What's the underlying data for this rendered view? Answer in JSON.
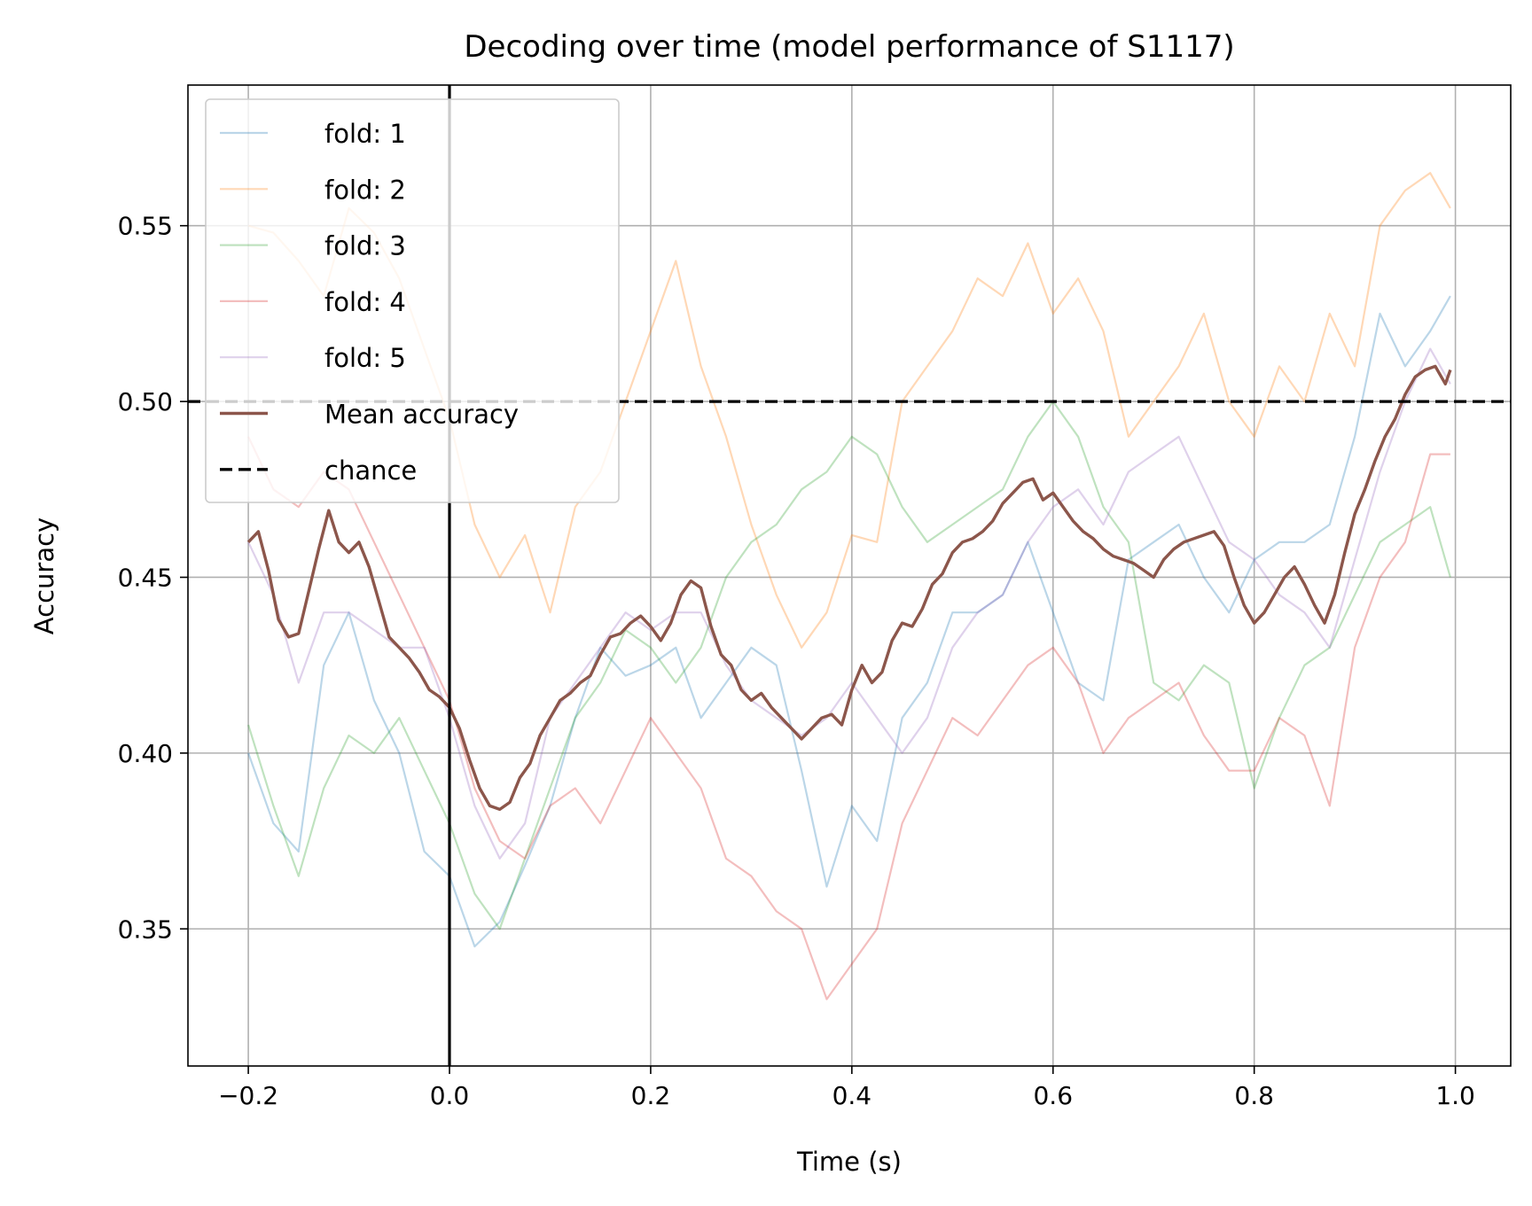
{
  "chart_data": {
    "type": "line",
    "title": "Decoding over time (model performance of S1117)",
    "xlabel": "Time (s)",
    "ylabel": "Accuracy",
    "xlim": [
      -0.26,
      1.055
    ],
    "ylim": [
      0.311,
      0.59
    ],
    "xticks": [
      -0.2,
      0.0,
      0.2,
      0.4,
      0.6,
      0.8,
      1.0
    ],
    "xtick_labels": [
      "−0.2",
      "0.0",
      "0.2",
      "0.4",
      "0.6",
      "0.8",
      "1.0"
    ],
    "yticks": [
      0.35,
      0.4,
      0.45,
      0.5,
      0.55
    ],
    "ytick_labels": [
      "0.35",
      "0.40",
      "0.45",
      "0.50",
      "0.55"
    ],
    "grid": true,
    "legend_position": "upper-left",
    "stimulus_onset_x": 0.0,
    "chance_level": 0.5,
    "series": [
      {
        "name": "fold: 1",
        "color": "#1f77b4",
        "opacity": 0.3,
        "x": [
          -0.2,
          -0.175,
          -0.15,
          -0.125,
          -0.1,
          -0.075,
          -0.05,
          -0.025,
          0.0,
          0.025,
          0.05,
          0.075,
          0.1,
          0.125,
          0.15,
          0.175,
          0.2,
          0.225,
          0.25,
          0.275,
          0.3,
          0.325,
          0.35,
          0.375,
          0.4,
          0.425,
          0.45,
          0.475,
          0.5,
          0.525,
          0.55,
          0.575,
          0.6,
          0.625,
          0.65,
          0.675,
          0.7,
          0.725,
          0.75,
          0.775,
          0.8,
          0.825,
          0.85,
          0.875,
          0.9,
          0.925,
          0.95,
          0.975,
          0.995
        ],
        "y": [
          0.4,
          0.38,
          0.372,
          0.425,
          0.44,
          0.415,
          0.4,
          0.372,
          0.365,
          0.345,
          0.352,
          0.368,
          0.385,
          0.41,
          0.43,
          0.422,
          0.425,
          0.43,
          0.41,
          0.42,
          0.43,
          0.425,
          0.395,
          0.362,
          0.385,
          0.375,
          0.41,
          0.42,
          0.44,
          0.44,
          0.445,
          0.46,
          0.44,
          0.42,
          0.415,
          0.455,
          0.46,
          0.465,
          0.45,
          0.44,
          0.455,
          0.46,
          0.46,
          0.465,
          0.49,
          0.525,
          0.51,
          0.52,
          0.53
        ]
      },
      {
        "name": "fold: 2",
        "color": "#ff7f0e",
        "opacity": 0.3,
        "x": [
          -0.2,
          -0.175,
          -0.15,
          -0.125,
          -0.1,
          -0.075,
          -0.05,
          -0.025,
          0.0,
          0.025,
          0.05,
          0.075,
          0.1,
          0.125,
          0.15,
          0.175,
          0.2,
          0.225,
          0.25,
          0.275,
          0.3,
          0.325,
          0.35,
          0.375,
          0.4,
          0.425,
          0.45,
          0.475,
          0.5,
          0.525,
          0.55,
          0.575,
          0.6,
          0.625,
          0.65,
          0.675,
          0.7,
          0.725,
          0.75,
          0.775,
          0.8,
          0.825,
          0.85,
          0.875,
          0.9,
          0.925,
          0.95,
          0.975,
          0.995
        ],
        "y": [
          0.55,
          0.548,
          0.54,
          0.53,
          0.555,
          0.548,
          0.535,
          0.515,
          0.495,
          0.465,
          0.45,
          0.462,
          0.44,
          0.47,
          0.48,
          0.5,
          0.52,
          0.54,
          0.51,
          0.49,
          0.465,
          0.445,
          0.43,
          0.44,
          0.462,
          0.46,
          0.5,
          0.51,
          0.52,
          0.535,
          0.53,
          0.545,
          0.525,
          0.535,
          0.52,
          0.49,
          0.5,
          0.51,
          0.525,
          0.5,
          0.49,
          0.51,
          0.5,
          0.525,
          0.51,
          0.55,
          0.56,
          0.565,
          0.555
        ]
      },
      {
        "name": "fold: 3",
        "color": "#2ca02c",
        "opacity": 0.3,
        "x": [
          -0.2,
          -0.175,
          -0.15,
          -0.125,
          -0.1,
          -0.075,
          -0.05,
          -0.025,
          0.0,
          0.025,
          0.05,
          0.075,
          0.1,
          0.125,
          0.15,
          0.175,
          0.2,
          0.225,
          0.25,
          0.275,
          0.3,
          0.325,
          0.35,
          0.375,
          0.4,
          0.425,
          0.45,
          0.475,
          0.5,
          0.525,
          0.55,
          0.575,
          0.6,
          0.625,
          0.65,
          0.675,
          0.7,
          0.725,
          0.75,
          0.775,
          0.8,
          0.825,
          0.85,
          0.875,
          0.9,
          0.925,
          0.95,
          0.975,
          0.995
        ],
        "y": [
          0.408,
          0.385,
          0.365,
          0.39,
          0.405,
          0.4,
          0.41,
          0.395,
          0.38,
          0.36,
          0.35,
          0.37,
          0.39,
          0.41,
          0.42,
          0.435,
          0.43,
          0.42,
          0.43,
          0.45,
          0.46,
          0.465,
          0.475,
          0.48,
          0.49,
          0.485,
          0.47,
          0.46,
          0.465,
          0.47,
          0.475,
          0.49,
          0.5,
          0.49,
          0.47,
          0.46,
          0.42,
          0.415,
          0.425,
          0.42,
          0.39,
          0.41,
          0.425,
          0.43,
          0.445,
          0.46,
          0.465,
          0.47,
          0.45
        ]
      },
      {
        "name": "fold: 4",
        "color": "#d62728",
        "opacity": 0.3,
        "x": [
          -0.2,
          -0.175,
          -0.15,
          -0.125,
          -0.1,
          -0.075,
          -0.05,
          -0.025,
          0.0,
          0.025,
          0.05,
          0.075,
          0.1,
          0.125,
          0.15,
          0.175,
          0.2,
          0.225,
          0.25,
          0.275,
          0.3,
          0.325,
          0.35,
          0.375,
          0.4,
          0.425,
          0.45,
          0.475,
          0.5,
          0.525,
          0.55,
          0.575,
          0.6,
          0.625,
          0.65,
          0.675,
          0.7,
          0.725,
          0.75,
          0.775,
          0.8,
          0.825,
          0.85,
          0.875,
          0.9,
          0.925,
          0.95,
          0.975,
          0.995
        ],
        "y": [
          0.49,
          0.475,
          0.47,
          0.48,
          0.475,
          0.46,
          0.445,
          0.43,
          0.415,
          0.39,
          0.375,
          0.37,
          0.385,
          0.39,
          0.38,
          0.395,
          0.41,
          0.4,
          0.39,
          0.37,
          0.365,
          0.355,
          0.35,
          0.33,
          0.34,
          0.35,
          0.38,
          0.395,
          0.41,
          0.405,
          0.415,
          0.425,
          0.43,
          0.42,
          0.4,
          0.41,
          0.415,
          0.42,
          0.405,
          0.395,
          0.395,
          0.41,
          0.405,
          0.385,
          0.43,
          0.45,
          0.46,
          0.485,
          0.485
        ]
      },
      {
        "name": "fold: 5",
        "color": "#9467bd",
        "opacity": 0.3,
        "x": [
          -0.2,
          -0.175,
          -0.15,
          -0.125,
          -0.1,
          -0.075,
          -0.05,
          -0.025,
          0.0,
          0.025,
          0.05,
          0.075,
          0.1,
          0.125,
          0.15,
          0.175,
          0.2,
          0.225,
          0.25,
          0.275,
          0.3,
          0.325,
          0.35,
          0.375,
          0.4,
          0.425,
          0.45,
          0.475,
          0.5,
          0.525,
          0.55,
          0.575,
          0.6,
          0.625,
          0.65,
          0.675,
          0.7,
          0.725,
          0.75,
          0.775,
          0.8,
          0.825,
          0.85,
          0.875,
          0.9,
          0.925,
          0.95,
          0.975,
          0.995
        ],
        "y": [
          0.46,
          0.445,
          0.42,
          0.44,
          0.44,
          0.435,
          0.43,
          0.43,
          0.41,
          0.385,
          0.37,
          0.38,
          0.41,
          0.42,
          0.43,
          0.44,
          0.435,
          0.44,
          0.44,
          0.425,
          0.415,
          0.41,
          0.405,
          0.41,
          0.42,
          0.41,
          0.4,
          0.41,
          0.43,
          0.44,
          0.445,
          0.46,
          0.47,
          0.475,
          0.465,
          0.48,
          0.485,
          0.49,
          0.475,
          0.46,
          0.455,
          0.445,
          0.44,
          0.43,
          0.455,
          0.48,
          0.5,
          0.515,
          0.505
        ]
      },
      {
        "name": "Mean accuracy",
        "color": "#8c564b",
        "opacity": 1,
        "x": [
          -0.2,
          -0.19,
          -0.18,
          -0.17,
          -0.16,
          -0.15,
          -0.14,
          -0.13,
          -0.12,
          -0.11,
          -0.1,
          -0.09,
          -0.08,
          -0.07,
          -0.06,
          -0.05,
          -0.04,
          -0.03,
          -0.02,
          -0.01,
          0.0,
          0.01,
          0.02,
          0.03,
          0.04,
          0.05,
          0.06,
          0.07,
          0.08,
          0.09,
          0.1,
          0.11,
          0.12,
          0.13,
          0.14,
          0.15,
          0.16,
          0.17,
          0.18,
          0.19,
          0.2,
          0.21,
          0.22,
          0.23,
          0.24,
          0.25,
          0.26,
          0.27,
          0.28,
          0.29,
          0.3,
          0.31,
          0.32,
          0.33,
          0.34,
          0.35,
          0.36,
          0.37,
          0.38,
          0.39,
          0.4,
          0.41,
          0.42,
          0.43,
          0.44,
          0.45,
          0.46,
          0.47,
          0.48,
          0.49,
          0.5,
          0.51,
          0.52,
          0.53,
          0.54,
          0.55,
          0.56,
          0.57,
          0.58,
          0.59,
          0.6,
          0.61,
          0.62,
          0.63,
          0.64,
          0.65,
          0.66,
          0.67,
          0.68,
          0.69,
          0.7,
          0.71,
          0.72,
          0.73,
          0.74,
          0.75,
          0.76,
          0.77,
          0.78,
          0.79,
          0.8,
          0.81,
          0.82,
          0.83,
          0.84,
          0.85,
          0.86,
          0.87,
          0.88,
          0.89,
          0.9,
          0.91,
          0.92,
          0.93,
          0.94,
          0.95,
          0.96,
          0.97,
          0.98,
          0.99,
          0.995
        ],
        "y": [
          0.46,
          0.463,
          0.452,
          0.438,
          0.433,
          0.434,
          0.446,
          0.458,
          0.469,
          0.46,
          0.457,
          0.46,
          0.453,
          0.443,
          0.433,
          0.43,
          0.427,
          0.423,
          0.418,
          0.416,
          0.413,
          0.407,
          0.398,
          0.39,
          0.385,
          0.384,
          0.386,
          0.393,
          0.397,
          0.405,
          0.41,
          0.415,
          0.417,
          0.42,
          0.422,
          0.428,
          0.433,
          0.434,
          0.437,
          0.439,
          0.436,
          0.432,
          0.437,
          0.445,
          0.449,
          0.447,
          0.436,
          0.428,
          0.425,
          0.418,
          0.415,
          0.417,
          0.413,
          0.41,
          0.407,
          0.404,
          0.407,
          0.41,
          0.411,
          0.408,
          0.418,
          0.425,
          0.42,
          0.423,
          0.432,
          0.437,
          0.436,
          0.441,
          0.448,
          0.451,
          0.457,
          0.46,
          0.461,
          0.463,
          0.466,
          0.471,
          0.474,
          0.477,
          0.478,
          0.472,
          0.474,
          0.47,
          0.466,
          0.463,
          0.461,
          0.458,
          0.456,
          0.455,
          0.454,
          0.452,
          0.45,
          0.455,
          0.458,
          0.46,
          0.461,
          0.462,
          0.463,
          0.459,
          0.45,
          0.442,
          0.437,
          0.44,
          0.445,
          0.45,
          0.453,
          0.448,
          0.442,
          0.437,
          0.445,
          0.457,
          0.468,
          0.475,
          0.483,
          0.49,
          0.495,
          0.502,
          0.507,
          0.509,
          0.51,
          0.505,
          0.509
        ]
      }
    ],
    "reference_line": {
      "name": "chance",
      "y": 0.5,
      "color": "#000000",
      "style": "dashed"
    },
    "legend": [
      "fold: 1",
      "fold: 2",
      "fold: 3",
      "fold: 4",
      "fold: 5",
      "Mean accuracy",
      "chance"
    ]
  }
}
